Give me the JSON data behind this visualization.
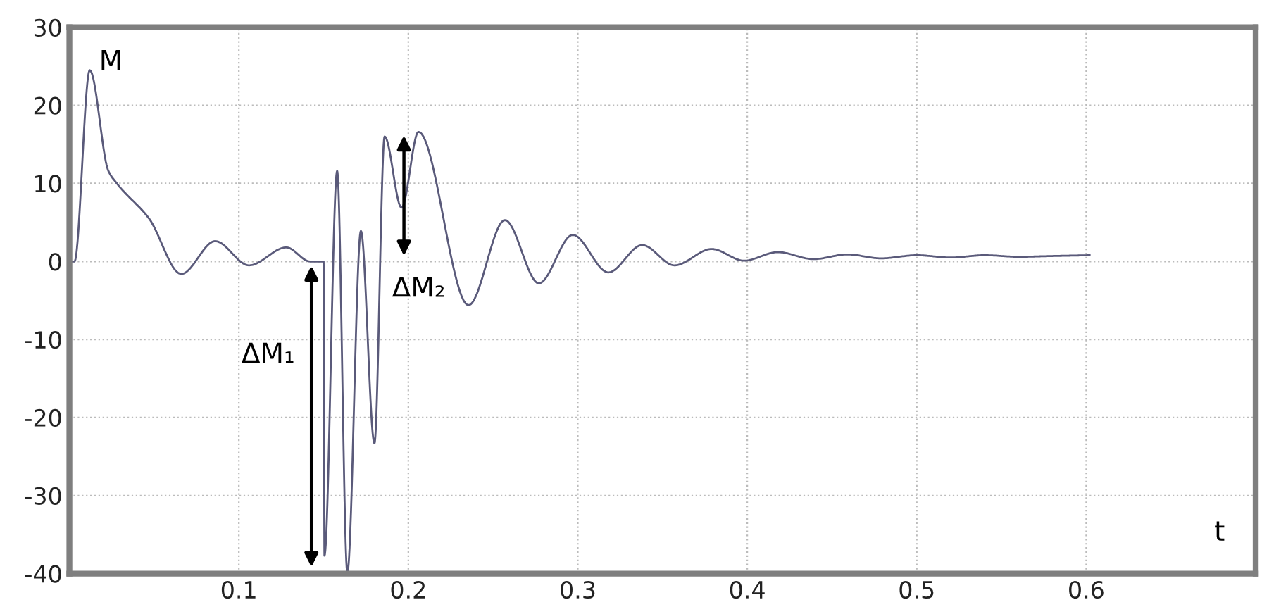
{
  "chart_data": {
    "type": "line",
    "xlabel": "t",
    "ylabel": "M",
    "x": [
      0.0,
      0.003,
      0.012,
      0.023,
      0.028,
      0.047,
      0.066,
      0.086,
      0.106,
      0.128,
      0.142,
      0.15,
      0.1505,
      0.158,
      0.164,
      0.172,
      0.18,
      0.186,
      0.196,
      0.206,
      0.2355,
      0.257,
      0.277,
      0.297,
      0.318,
      0.338,
      0.357,
      0.379,
      0.398,
      0.418,
      0.439,
      0.459,
      0.479,
      0.5,
      0.52,
      0.54,
      0.56,
      0.58,
      0.602
    ],
    "series": [
      {
        "color": "#5a5a7a",
        "values": [
          0,
          0,
          24.5,
          11.6,
          10,
          5.5,
          -1.6,
          2.6,
          -0.5,
          1.8,
          0,
          0,
          -37.7,
          11.6,
          -39.9,
          3.9,
          -23.3,
          16,
          6.9,
          16.6,
          -5.6,
          5.3,
          -2.8,
          3.4,
          -1.4,
          2.1,
          -0.5,
          1.6,
          0.1,
          1.2,
          0.3,
          0.9,
          0.4,
          0.8,
          0.5,
          0.8,
          0.6,
          0.7,
          0.8
        ]
      }
    ],
    "xlim": [
      0,
      0.7
    ],
    "ylim": [
      -40,
      30
    ],
    "xticks": [
      0.1,
      0.2,
      0.3,
      0.4,
      0.5,
      0.6
    ],
    "yticks": [
      -40,
      -30,
      -20,
      -10,
      0,
      10,
      20,
      30
    ],
    "grid": true,
    "line_style": "solid",
    "annotations": [
      "ΔM₁",
      "ΔM₂"
    ]
  }
}
